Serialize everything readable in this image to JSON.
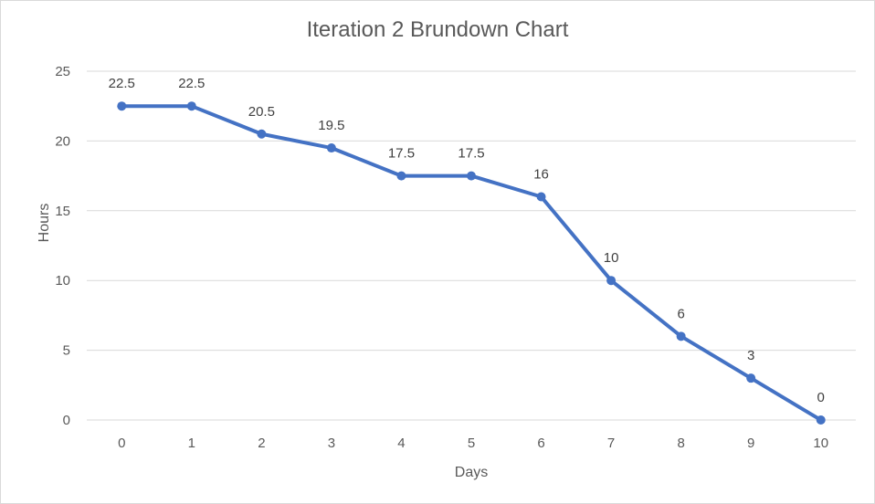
{
  "chart_data": {
    "type": "line",
    "title": "Iteration 2 Brundown Chart",
    "xlabel": "Days",
    "ylabel": "Hours",
    "x": [
      0,
      1,
      2,
      3,
      4,
      5,
      6,
      7,
      8,
      9,
      10
    ],
    "series": [
      {
        "values": [
          22.5,
          22.5,
          20.5,
          19.5,
          17.5,
          17.5,
          16,
          10,
          6,
          3,
          0
        ]
      }
    ],
    "ylim": [
      0,
      25
    ],
    "yticks": [
      0,
      5,
      10,
      15,
      20,
      25
    ],
    "grid": true,
    "legend": "none",
    "line_color": "#4472c4",
    "grid_color": "#d9d9d9"
  }
}
